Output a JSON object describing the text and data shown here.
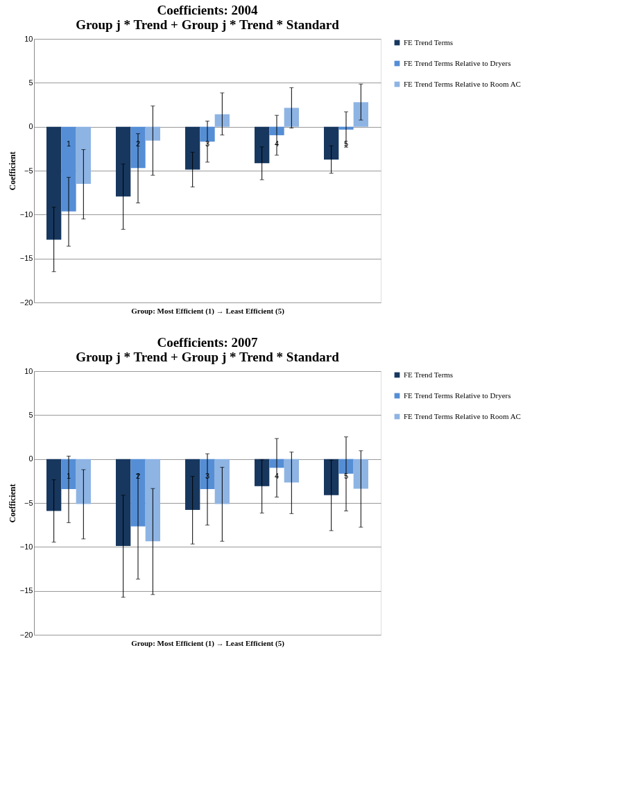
{
  "chart_data": [
    {
      "type": "bar",
      "title": "Coefficients: 2004\nGroup j * Trend  + Group j * Trend * Standard",
      "xlabel": "Group: Most Efficient (1) → Least Efficient (5)",
      "ylabel": "Coefficient",
      "categories": [
        "1",
        "2",
        "3",
        "4",
        "5"
      ],
      "ylim": [
        -20,
        10
      ],
      "yticks": [
        -20,
        -15,
        -10,
        -5,
        0,
        5,
        10
      ],
      "grid": "y",
      "legend": "right",
      "series": [
        {
          "name": "FE Trend Terms",
          "color": "#17375e",
          "values": [
            -12.85,
            -7.94,
            -4.88,
            -4.15,
            -3.73
          ],
          "errors": [
            [
              -16.5,
              -9.15
            ],
            [
              -11.67,
              -4.24
            ],
            [
              -6.85,
              -2.9
            ],
            [
              -6.03,
              -2.3
            ],
            [
              -5.3,
              -2.18
            ]
          ]
        },
        {
          "name": "FE Trend Terms Relative to Dryers",
          "color": "#558ed5",
          "values": [
            -9.64,
            -4.7,
            -1.7,
            -0.97,
            -0.33
          ],
          "errors": [
            [
              -13.6,
              -5.76
            ],
            [
              -8.67,
              -0.79
            ],
            [
              -4.03,
              0.64
            ],
            [
              -3.24,
              1.3
            ],
            [
              -2.33,
              1.7
            ]
          ]
        },
        {
          "name": "FE Trend Terms Relative to Room AC",
          "color": "#8eb4e3",
          "values": [
            -6.5,
            -1.58,
            1.42,
            2.15,
            2.79
          ],
          "errors": [
            [
              -10.5,
              -2.6
            ],
            [
              -5.52,
              2.36
            ],
            [
              -0.94,
              3.85
            ],
            [
              -0.15,
              4.45
            ],
            [
              0.76,
              4.85
            ]
          ]
        }
      ]
    },
    {
      "type": "bar",
      "title": "Coefficients: 2007\nGroup j * Trend  + Group j * Trend * Standard",
      "xlabel": "Group: Most Efficient (1) → Least Efficient (5)",
      "ylabel": "Coefficient",
      "categories": [
        "1",
        "2",
        "3",
        "4",
        "5"
      ],
      "ylim": [
        -20,
        10
      ],
      "yticks": [
        -20,
        -15,
        -10,
        -5,
        0,
        5,
        10
      ],
      "grid": "y",
      "legend": "right",
      "series": [
        {
          "name": "FE Trend Terms",
          "color": "#17375e",
          "values": [
            -5.9,
            -9.9,
            -5.79,
            -3.09,
            -4.12
          ],
          "errors": [
            [
              -9.45,
              -2.36
            ],
            [
              -15.73,
              -4.12
            ],
            [
              -9.67,
              -1.97
            ],
            [
              -6.15,
              -0.09
            ],
            [
              -8.15,
              -0.12
            ]
          ]
        },
        {
          "name": "FE Trend Terms Relative to Dryers",
          "color": "#558ed5",
          "values": [
            -3.42,
            -7.67,
            -3.42,
            -1.0,
            -1.67
          ],
          "errors": [
            [
              -7.24,
              0.33
            ],
            [
              -13.67,
              -1.73
            ],
            [
              -7.52,
              0.6
            ],
            [
              -4.33,
              2.33
            ],
            [
              -5.91,
              2.52
            ]
          ]
        },
        {
          "name": "FE Trend Terms Relative to Room AC",
          "color": "#8eb4e3",
          "values": [
            -5.12,
            -9.36,
            -5.12,
            -2.67,
            -3.39
          ],
          "errors": [
            [
              -9.09,
              -1.21
            ],
            [
              -15.42,
              -3.36
            ],
            [
              -9.36,
              -0.94
            ],
            [
              -6.21,
              0.79
            ],
            [
              -7.76,
              0.94
            ]
          ]
        }
      ]
    }
  ]
}
